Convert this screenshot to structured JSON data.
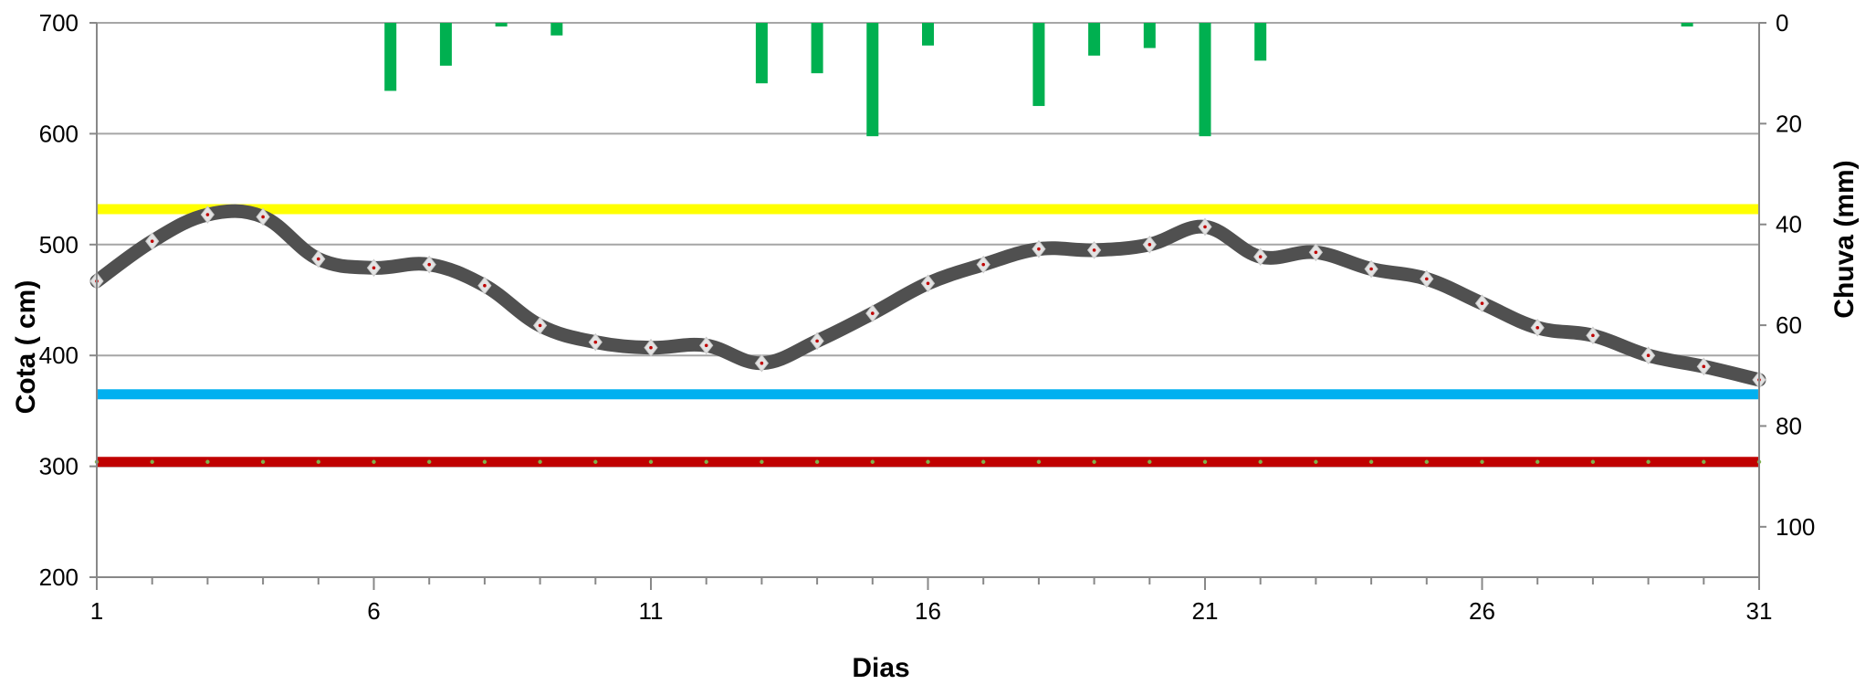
{
  "chart_data": {
    "type": "line",
    "xlabel": "Dias",
    "ylabel": "Cota   ( cm)",
    "y2label": "Chuva (mm)",
    "xlim": [
      1,
      31
    ],
    "ylim": [
      200,
      700
    ],
    "y2lim": [
      0,
      110
    ],
    "x_ticks": [
      1,
      6,
      11,
      16,
      21,
      26,
      31
    ],
    "y_ticks": [
      200,
      300,
      400,
      500,
      600,
      700
    ],
    "y2_ticks": [
      0,
      20,
      40,
      60,
      80,
      100
    ],
    "grid": true,
    "series": [
      {
        "kind": "line",
        "color": "#505050",
        "x": [
          1,
          2,
          3,
          4,
          5,
          6,
          7,
          8,
          9,
          10,
          11,
          12,
          13,
          14,
          15,
          16,
          17,
          18,
          19,
          20,
          21,
          22,
          23,
          24,
          25,
          26,
          27,
          28,
          29,
          30,
          31
        ],
        "values": [
          467,
          503,
          527,
          525,
          487,
          479,
          482,
          463,
          427,
          412,
          407,
          409,
          393,
          413,
          438,
          465,
          482,
          496,
          495,
          500,
          516,
          489,
          493,
          478,
          469,
          447,
          425,
          418,
          400,
          390,
          378
        ]
      },
      {
        "kind": "bar",
        "axis": "right",
        "color": "#00b050",
        "x": [
          6.3,
          7.3,
          8.3,
          9.3,
          13,
          14,
          15,
          16,
          18,
          19,
          20,
          21,
          22,
          29.7
        ],
        "values": [
          13.5,
          8.5,
          0.5,
          2.5,
          12,
          10,
          22.5,
          4.5,
          16.5,
          6.5,
          5,
          22.5,
          7.5,
          0.5
        ]
      },
      {
        "kind": "hline",
        "color": "#ffff00",
        "values": [
          532
        ]
      },
      {
        "kind": "hline",
        "color": "#00b0f0",
        "values": [
          365
        ]
      },
      {
        "kind": "hline",
        "color": "#c00000",
        "values": [
          304
        ]
      }
    ]
  }
}
